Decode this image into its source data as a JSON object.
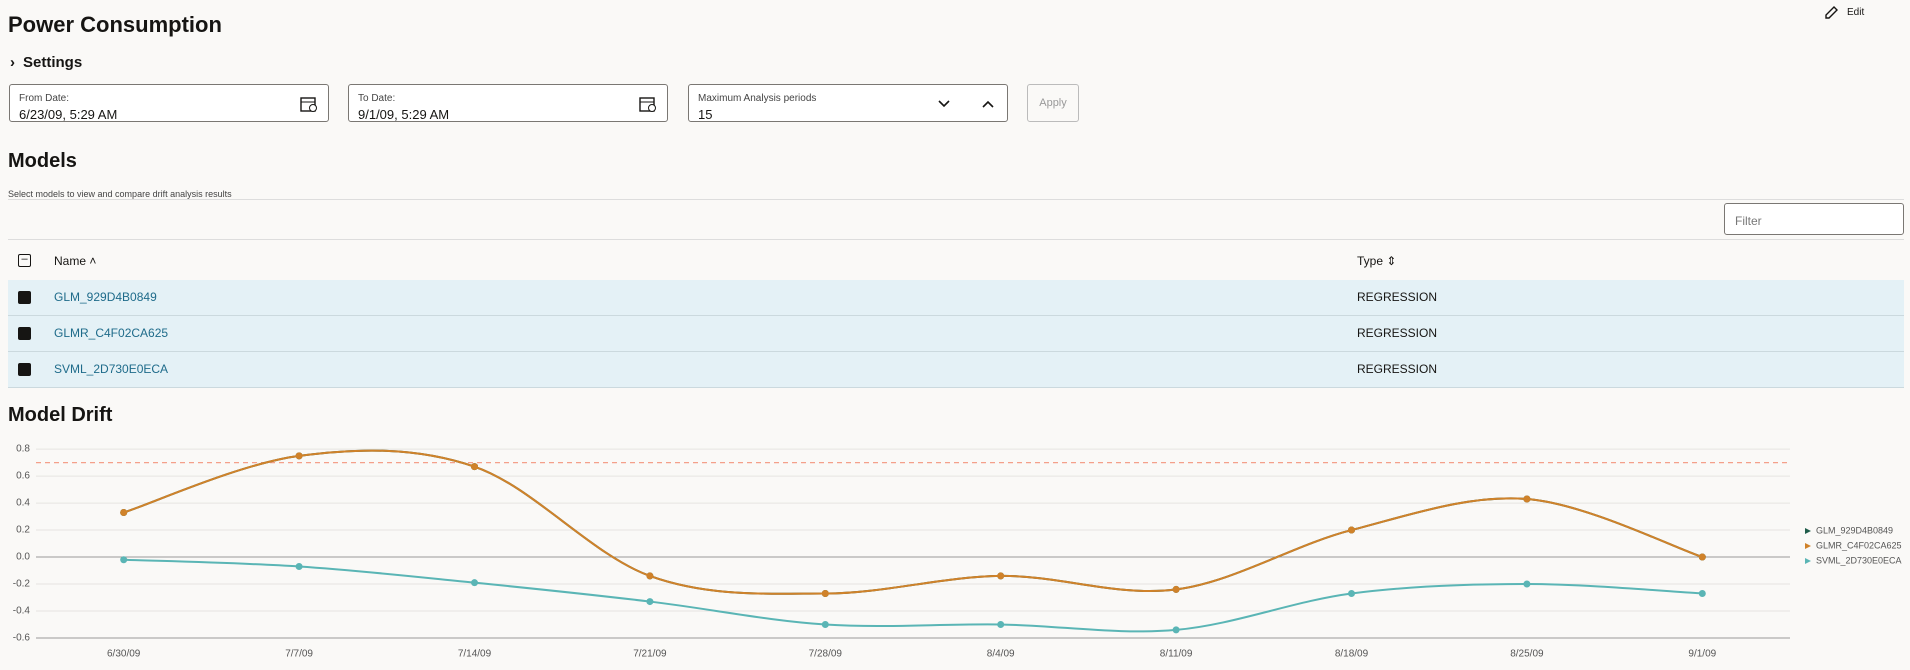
{
  "header": {
    "title": "Power Consumption",
    "edit": "Edit"
  },
  "settings": {
    "title": "Settings",
    "from_label": "From Date:",
    "from_value": "6/23/09, 5:29 AM",
    "to_label": "To Date:",
    "to_value": "9/1/09, 5:29 AM",
    "periods_label": "Maximum Analysis periods",
    "periods_value": "15",
    "apply": "Apply"
  },
  "models": {
    "title": "Models",
    "subtitle": "Select models to view and compare drift analysis results",
    "filter_placeholder": "Filter",
    "columns": [
      "Name",
      "Type"
    ],
    "rows": [
      [
        "GLM_929D4B0849",
        "REGRESSION"
      ],
      [
        "GLMR_C4F02CA625",
        "REGRESSION"
      ],
      [
        "SVML_2D730E0ECA",
        "REGRESSION"
      ]
    ]
  },
  "chart_data": {
    "type": "line",
    "title": "Model Drift",
    "categories": [
      "6/30/09",
      "7/7/09",
      "7/14/09",
      "7/21/09",
      "7/28/09",
      "8/4/09",
      "8/11/09",
      "8/18/09",
      "8/25/09",
      "9/1/09"
    ],
    "series": [
      {
        "name": "GLM_929D4B0849",
        "color": "#1f5c4a",
        "values": [
          0.33,
          0.75,
          0.67,
          -0.14,
          -0.27,
          -0.14,
          -0.24,
          0.2,
          0.43,
          0.0
        ]
      },
      {
        "name": "GLMR_C4F02CA625",
        "color": "#d0822a",
        "values": [
          0.33,
          0.75,
          0.67,
          -0.14,
          -0.27,
          -0.14,
          -0.24,
          0.2,
          0.43,
          0.0
        ]
      },
      {
        "name": "SVML_2D730E0ECA",
        "color": "#5ab5b5",
        "values": [
          -0.02,
          -0.07,
          -0.19,
          -0.33,
          -0.5,
          -0.5,
          -0.54,
          -0.27,
          -0.2,
          -0.27
        ]
      }
    ],
    "ylim": [
      -0.6,
      0.86
    ],
    "yticks": [
      -0.6,
      -0.4,
      -0.2,
      {
        "value": 0,
        "label": "0.0"
      },
      0.2,
      0.4,
      0.6,
      0.8
    ],
    "threshold": 0.7,
    "grid": true,
    "legend": "right"
  }
}
